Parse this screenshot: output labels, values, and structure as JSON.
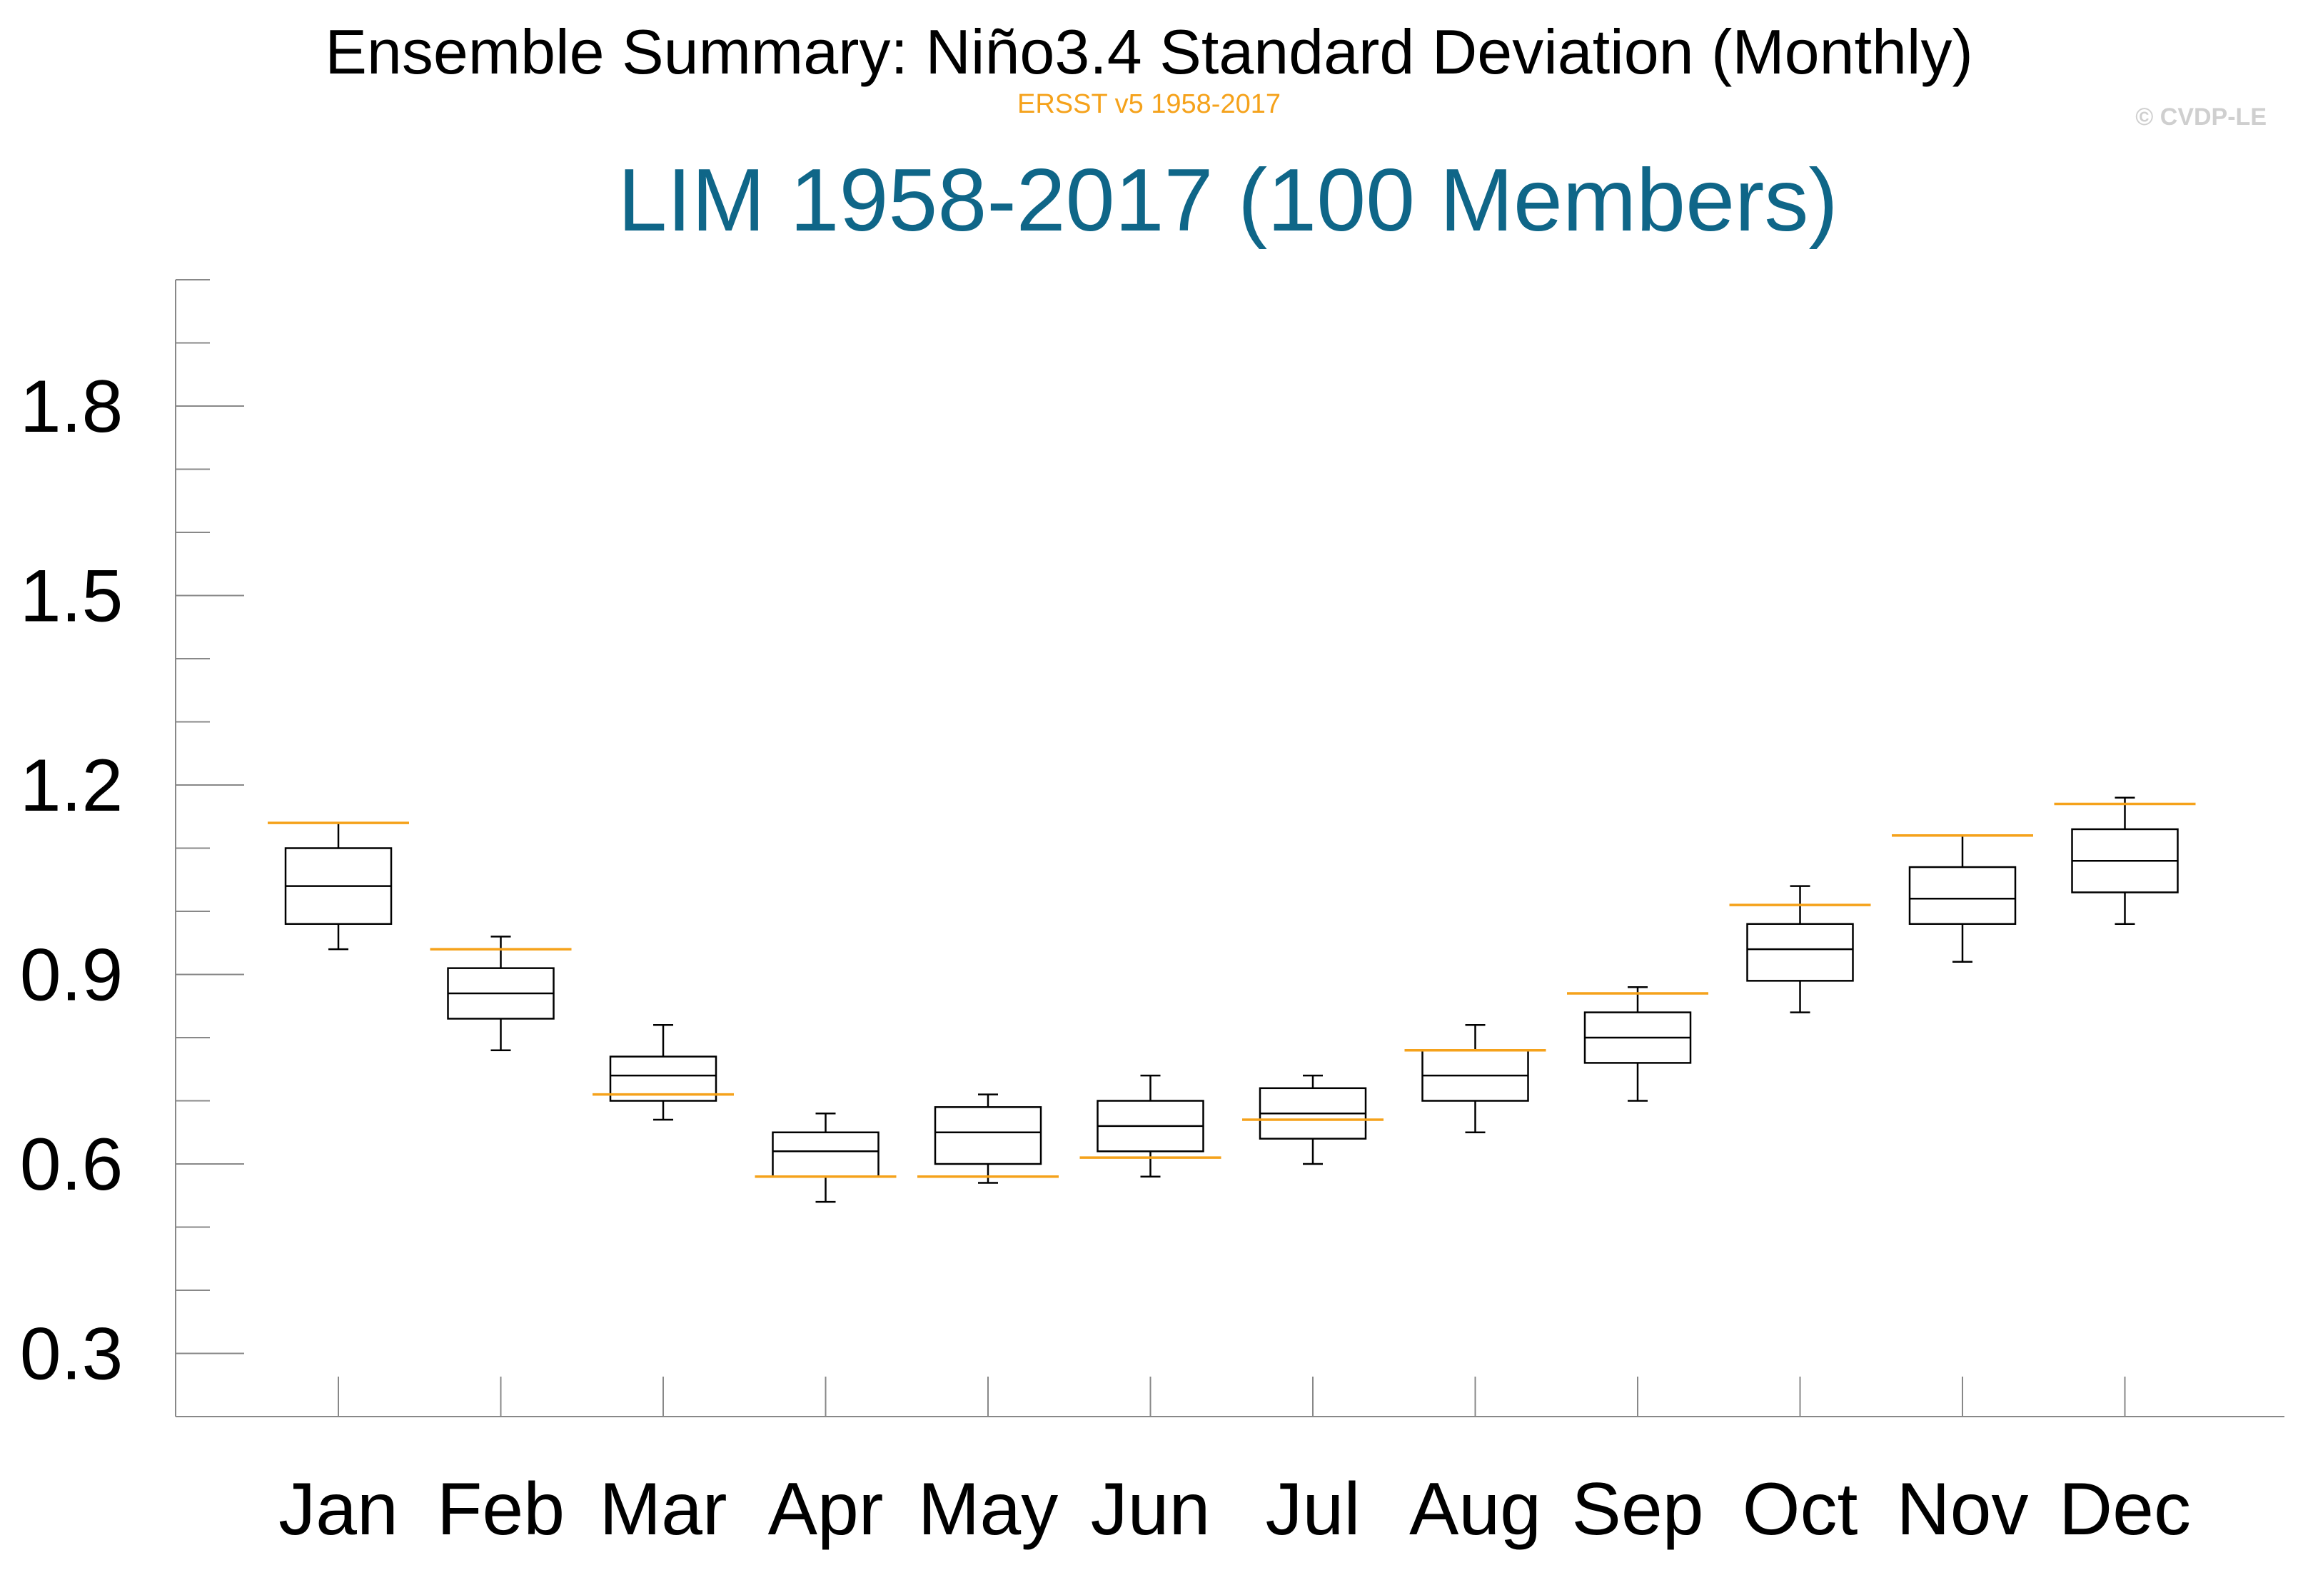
{
  "header": {
    "title": "Ensemble Summary: Niño3.4 Standard Deviation (Monthly)",
    "subtitle": "ERSST v5 1958-2017",
    "copyright": "© CVDP-LE",
    "panel_title": "LIM 1958-2017 (100 Members)"
  },
  "colors": {
    "observed_line": "#f5a21b",
    "panel_title": "#0f6688",
    "box": "#000000",
    "axis": "#888888"
  },
  "chart_data": {
    "type": "boxplot",
    "title": "Ensemble Summary: Niño3.4 Standard Deviation (Monthly)",
    "subtitle": "ERSST v5 1958-2017",
    "panel_title": "LIM 1958-2017 (100 Members)",
    "xlabel": "",
    "ylabel": "",
    "ylim": [
      0.2,
      2.0
    ],
    "yticks": [
      0.3,
      0.6,
      0.9,
      1.2,
      1.5,
      1.8
    ],
    "ytick_labels": [
      "0.3",
      "0.6",
      "0.9",
      "1.2",
      "1.5",
      "1.8"
    ],
    "categories": [
      "Jan",
      "Feb",
      "Mar",
      "Apr",
      "May",
      "Jun",
      "Jul",
      "Aug",
      "Sep",
      "Oct",
      "Nov",
      "Dec"
    ],
    "grid": false,
    "series": [
      {
        "name": "LIM 1958-2017 (100 Members)",
        "boxes": [
          {
            "min": 0.94,
            "q1": 0.98,
            "median": 1.04,
            "q3": 1.1,
            "max": 1.14
          },
          {
            "min": 0.78,
            "q1": 0.83,
            "median": 0.87,
            "q3": 0.91,
            "max": 0.96
          },
          {
            "min": 0.67,
            "q1": 0.7,
            "median": 0.74,
            "q3": 0.77,
            "max": 0.82
          },
          {
            "min": 0.54,
            "q1": 0.58,
            "median": 0.62,
            "q3": 0.65,
            "max": 0.68
          },
          {
            "min": 0.57,
            "q1": 0.6,
            "median": 0.65,
            "q3": 0.69,
            "max": 0.71
          },
          {
            "min": 0.58,
            "q1": 0.62,
            "median": 0.66,
            "q3": 0.7,
            "max": 0.74
          },
          {
            "min": 0.6,
            "q1": 0.64,
            "median": 0.68,
            "q3": 0.72,
            "max": 0.74
          },
          {
            "min": 0.65,
            "q1": 0.7,
            "median": 0.74,
            "q3": 0.78,
            "max": 0.82
          },
          {
            "min": 0.7,
            "q1": 0.76,
            "median": 0.8,
            "q3": 0.84,
            "max": 0.88
          },
          {
            "min": 0.84,
            "q1": 0.89,
            "median": 0.94,
            "q3": 0.98,
            "max": 1.04
          },
          {
            "min": 0.92,
            "q1": 0.98,
            "median": 1.02,
            "q3": 1.07,
            "max": 1.12
          },
          {
            "min": 0.98,
            "q1": 1.03,
            "median": 1.08,
            "q3": 1.13,
            "max": 1.18
          }
        ]
      },
      {
        "name": "ERSST v5 1958-2017",
        "values": [
          1.14,
          0.94,
          0.71,
          0.58,
          0.58,
          0.61,
          0.67,
          0.78,
          0.87,
          1.01,
          1.12,
          1.17
        ]
      }
    ]
  }
}
